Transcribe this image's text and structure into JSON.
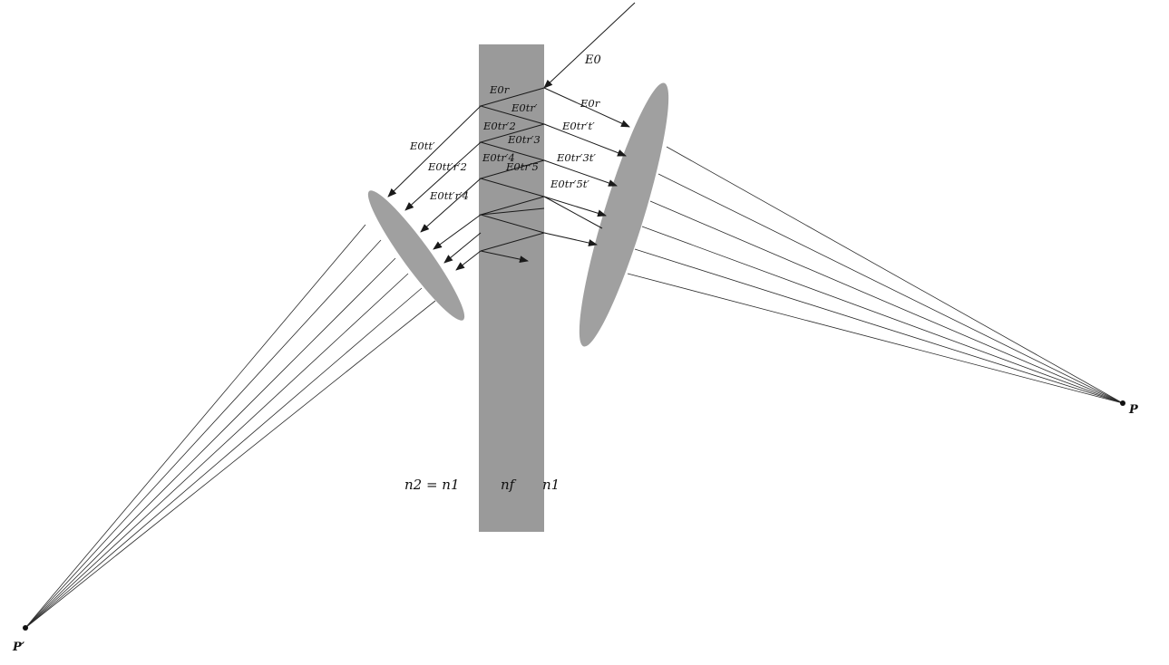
{
  "labels": {
    "incident": "E0",
    "refl_1": "E0r",
    "refl_2": "E0tr′",
    "refl_3": "E0tr′2",
    "refl_4": "E0tr′3",
    "refl_5": "E0tr′4",
    "refl_6": "E0tr′5",
    "trans_r": "E0r",
    "trans_1": "E0tr′t′",
    "trans_3": "E0tr′3t′",
    "trans_5": "E0tr′5t′",
    "left_1": "E0tt′",
    "left_2": "E0tt′r′2",
    "left_3": "E0tt′r′4",
    "index_left": "n2 = n1",
    "index_film": "nf",
    "index_right": "n1",
    "point_p": "P",
    "point_p_prime": "P′"
  },
  "colors": {
    "film": "#9a9a9a",
    "lens": "#a0a0a0",
    "ray": "#1a1a1a"
  }
}
